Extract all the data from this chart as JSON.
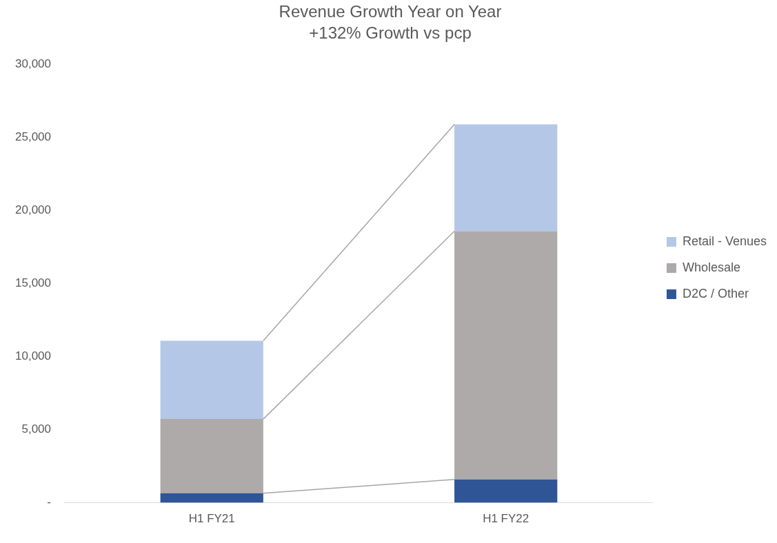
{
  "chart_data": {
    "type": "bar",
    "title": "Revenue Growth Year on Year",
    "subtitle": "+132% Growth vs pcp",
    "categories": [
      "H1 FY21",
      "H1 FY22"
    ],
    "stacked": true,
    "series": [
      {
        "name": "D2C / Other",
        "color": "#2f5597",
        "values": [
          650,
          1600
        ]
      },
      {
        "name": "Wholesale",
        "color": "#aeaaaa",
        "values": [
          5080,
          16990
        ]
      },
      {
        "name": "Retail - Venues",
        "color": "#b4c7e7",
        "values": [
          5360,
          7310
        ]
      }
    ],
    "ylim": [
      0,
      30000
    ],
    "yticks": [
      {
        "value": 0,
        "label": "-"
      },
      {
        "value": 5000,
        "label": "5,000"
      },
      {
        "value": 10000,
        "label": "10,000"
      },
      {
        "value": 15000,
        "label": "15,000"
      },
      {
        "value": 20000,
        "label": "20,000"
      },
      {
        "value": 25000,
        "label": "25,000"
      },
      {
        "value": 30000,
        "label": "30,000"
      }
    ],
    "grid": false,
    "legend": "right"
  }
}
